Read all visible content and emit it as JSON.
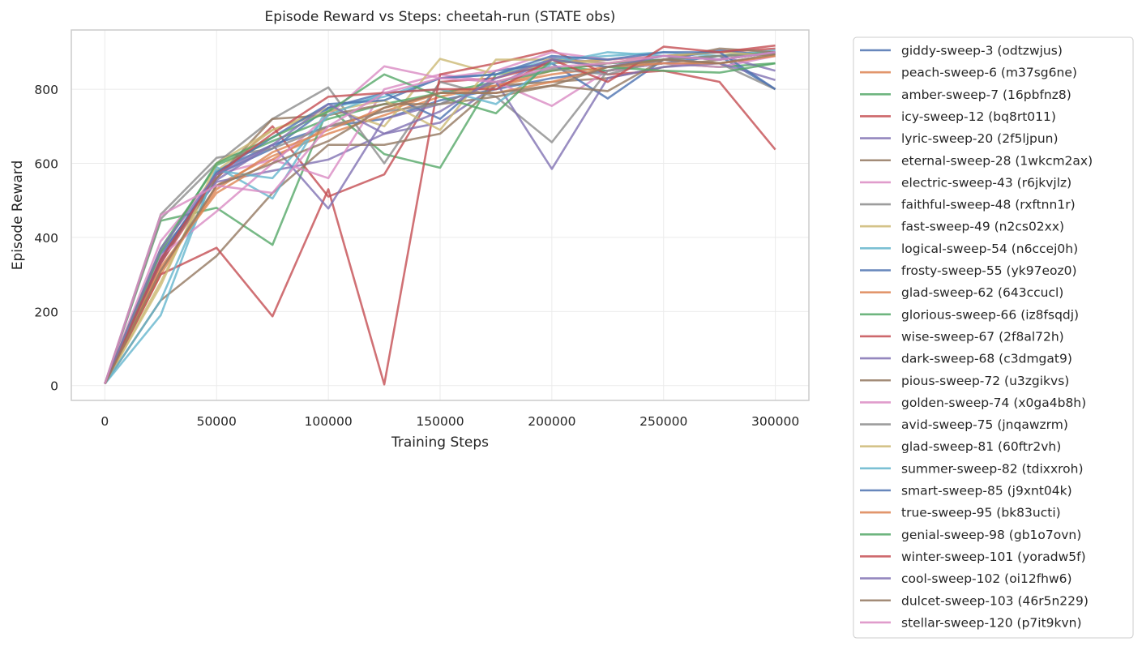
{
  "chart_data": {
    "type": "line",
    "title": "Episode Reward vs Steps: cheetah-run (STATE obs)",
    "xlabel": "Training Steps",
    "ylabel": "Episode Reward",
    "xlim": [
      -15000,
      315000
    ],
    "ylim": [
      -40,
      960
    ],
    "xticks": [
      0,
      50000,
      100000,
      150000,
      200000,
      250000,
      300000
    ],
    "yticks": [
      0,
      200,
      400,
      600,
      800
    ],
    "grid": true,
    "legend_position": "outside right",
    "x": [
      0,
      25000,
      50000,
      75000,
      100000,
      125000,
      150000,
      175000,
      200000,
      225000,
      250000,
      275000,
      300000
    ],
    "series": [
      {
        "name": "giddy-sweep-3 (odtzwjus)",
        "color": "#4c72b0",
        "values": [
          5,
          330,
          580,
          650,
          700,
          720,
          770,
          800,
          830,
          850,
          870,
          890,
          800
        ]
      },
      {
        "name": "peach-sweep-6 (m37sg6ne)",
        "color": "#dd8452",
        "values": [
          5,
          300,
          540,
          620,
          680,
          730,
          780,
          810,
          850,
          870,
          880,
          870,
          890
        ]
      },
      {
        "name": "amber-sweep-7 (16pbfnz8)",
        "color": "#55a868",
        "values": [
          5,
          445,
          480,
          380,
          750,
          625,
          588,
          840,
          860,
          850,
          870,
          860,
          870
        ]
      },
      {
        "name": "icy-sweep-12 (bq8rt011)",
        "color": "#c44e52",
        "values": [
          5,
          330,
          560,
          700,
          510,
          570,
          820,
          830,
          870,
          880,
          890,
          900,
          910
        ]
      },
      {
        "name": "lyric-sweep-20 (2f5ljpun)",
        "color": "#8172b3",
        "values": [
          5,
          360,
          550,
          580,
          610,
          680,
          710,
          810,
          885,
          870,
          880,
          890,
          850
        ]
      },
      {
        "name": "eternal-sweep-28 (1wkcm2ax)",
        "color": "#937860",
        "values": [
          5,
          230,
          350,
          520,
          650,
          650,
          680,
          810,
          820,
          830,
          860,
          880,
          900
        ]
      },
      {
        "name": "electric-sweep-43 (r6jkvjlz)",
        "color": "#da8bc3",
        "values": [
          5,
          390,
          570,
          610,
          560,
          800,
          840,
          820,
          755,
          850,
          870,
          860,
          890
        ]
      },
      {
        "name": "faithful-sweep-48 (rxftnn1r)",
        "color": "#8c8c8c",
        "values": [
          5,
          450,
          600,
          720,
          805,
          600,
          820,
          780,
          657,
          850,
          880,
          870,
          800
        ]
      },
      {
        "name": "fast-sweep-49 (n2cs02xx)",
        "color": "#ccb974",
        "values": [
          5,
          280,
          580,
          690,
          750,
          700,
          882,
          840,
          870,
          880,
          890,
          880,
          900
        ]
      },
      {
        "name": "logical-sweep-54 (n6ccej0h)",
        "color": "#64b5cd",
        "values": [
          5,
          190,
          590,
          505,
          750,
          780,
          830,
          840,
          880,
          890,
          900,
          890,
          905
        ]
      },
      {
        "name": "frosty-sweep-55 (yk97eoz0)",
        "color": "#4c72b0",
        "values": [
          5,
          350,
          570,
          640,
          750,
          790,
          720,
          850,
          870,
          775,
          880,
          905,
          890
        ]
      },
      {
        "name": "glad-sweep-62 (643ccucl)",
        "color": "#dd8452",
        "values": [
          5,
          320,
          520,
          610,
          700,
          740,
          790,
          810,
          840,
          860,
          880,
          890,
          895
        ]
      },
      {
        "name": "glorious-sweep-66 (iz8fsqdj)",
        "color": "#55a868",
        "values": [
          5,
          370,
          595,
          660,
          720,
          760,
          790,
          820,
          850,
          870,
          880,
          890,
          900
        ]
      },
      {
        "name": "wise-sweep-67 (2f8al72h)",
        "color": "#c44e52",
        "values": [
          5,
          300,
          372,
          187,
          530,
          3,
          840,
          870,
          905,
          840,
          850,
          820,
          637
        ]
      },
      {
        "name": "dark-sweep-68 (c3dmgat9)",
        "color": "#8172b3",
        "values": [
          5,
          345,
          555,
          650,
          478,
          720,
          760,
          820,
          585,
          830,
          860,
          870,
          825
        ]
      },
      {
        "name": "pious-sweep-72 (u3zgikvs)",
        "color": "#937860",
        "values": [
          5,
          340,
          560,
          720,
          730,
          760,
          760,
          780,
          810,
          795,
          880,
          910,
          900
        ]
      },
      {
        "name": "golden-sweep-74 (x0ga4b8h)",
        "color": "#da8bc3",
        "values": [
          5,
          350,
          470,
          600,
          730,
          862,
          830,
          850,
          900,
          880,
          890,
          880,
          900
        ]
      },
      {
        "name": "avid-sweep-75 (jnqawzrm)",
        "color": "#8c8c8c",
        "values": [
          5,
          462,
          615,
          640,
          700,
          740,
          760,
          820,
          855,
          840,
          880,
          890,
          895
        ]
      },
      {
        "name": "glad-sweep-81 (60ftr2vh)",
        "color": "#ccb974",
        "values": [
          5,
          270,
          600,
          690,
          740,
          770,
          690,
          880,
          880,
          870,
          890,
          900,
          890
        ]
      },
      {
        "name": "summer-sweep-82 (tdixxroh)",
        "color": "#64b5cd",
        "values": [
          5,
          230,
          580,
          560,
          730,
          790,
          800,
          760,
          870,
          900,
          890,
          880,
          900
        ]
      },
      {
        "name": "smart-sweep-85 (j9xnt04k)",
        "color": "#4c72b0",
        "values": [
          5,
          340,
          575,
          670,
          760,
          770,
          830,
          840,
          890,
          880,
          900,
          900,
          800
        ]
      },
      {
        "name": "true-sweep-95 (bk83ucti)",
        "color": "#dd8452",
        "values": [
          5,
          310,
          530,
          630,
          690,
          750,
          790,
          790,
          820,
          860,
          870,
          870,
          890
        ]
      },
      {
        "name": "genial-sweep-98 (gb1o7ovn)",
        "color": "#55a868",
        "values": [
          5,
          360,
          600,
          670,
          740,
          840,
          780,
          735,
          880,
          860,
          850,
          845,
          870
        ]
      },
      {
        "name": "winter-sweep-101 (yoradw5f)",
        "color": "#c44e52",
        "values": [
          5,
          340,
          570,
          680,
          780,
          790,
          800,
          800,
          880,
          820,
          915,
          900,
          918
        ]
      },
      {
        "name": "cool-sweep-102 (oi12fhw6)",
        "color": "#8172b3",
        "values": [
          5,
          370,
          570,
          650,
          760,
          680,
          740,
          830,
          880,
          860,
          890,
          880,
          900
        ]
      },
      {
        "name": "dulcet-sweep-103 (46r5n229)",
        "color": "#937860",
        "values": [
          5,
          310,
          540,
          600,
          660,
          750,
          790,
          790,
          810,
          860,
          880,
          870,
          895
        ]
      },
      {
        "name": "stellar-sweep-120 (p7it9kvn)",
        "color": "#da8bc3",
        "values": [
          5,
          460,
          540,
          520,
          700,
          790,
          830,
          820,
          860,
          870,
          890,
          880,
          900
        ]
      }
    ]
  }
}
